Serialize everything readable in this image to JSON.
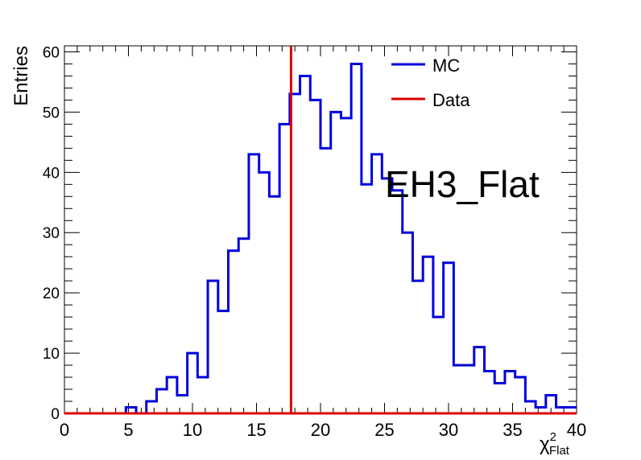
{
  "chart_data": {
    "type": "line",
    "title": "EH3_Flat",
    "ylabel": "Entries",
    "xlabel_main": "χ",
    "xlabel_sup": "2",
    "xlabel_sub": "Flat",
    "xlim": [
      0,
      40
    ],
    "ylim": [
      0,
      61
    ],
    "x_ticks": [
      0,
      5,
      10,
      15,
      20,
      25,
      30,
      35,
      40
    ],
    "y_ticks": [
      0,
      10,
      20,
      30,
      40,
      50,
      60
    ],
    "bin_width": 0.8,
    "legend": {
      "position": "top-right",
      "entries": [
        "MC",
        "Data"
      ]
    },
    "series": [
      {
        "name": "MC",
        "color": "#0000dd",
        "style": "step-histogram",
        "values": [
          0,
          0,
          0,
          0,
          0,
          0,
          1,
          0,
          2,
          4,
          6,
          3,
          10,
          6,
          22,
          17,
          27,
          29,
          43,
          40,
          36,
          48,
          53,
          56,
          52,
          44,
          50,
          49,
          58,
          38,
          43,
          39,
          37,
          30,
          22,
          26,
          16,
          25,
          8,
          8,
          11,
          7,
          5,
          7,
          6,
          2,
          1,
          3,
          1,
          1
        ]
      },
      {
        "name": "Data",
        "color": "#dd0000",
        "style": "vertical-line",
        "x": 17.7
      }
    ]
  }
}
